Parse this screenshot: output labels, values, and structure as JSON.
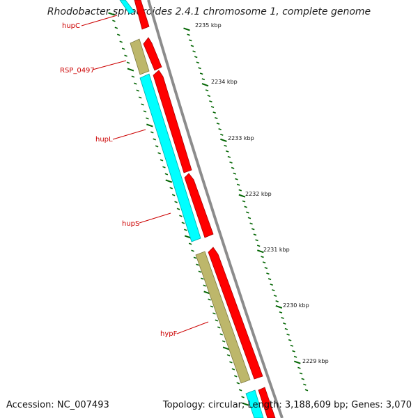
{
  "title": "Rhodobacter sphaeroides 2.4.1 chromosome 1, complete genome",
  "footer": {
    "accession": "Accession: NC_007493",
    "summary": "Topology: circular; Length: 3,188,609 bp; Genes: 3,070"
  },
  "gene_labels": [
    "hupC",
    "RSP_0497",
    "hupL",
    "hupS",
    "hypF"
  ],
  "kbp_labels": [
    "2235 kbp",
    "2234 kbp",
    "2233 kbp",
    "2232 kbp",
    "2231 kbp",
    "2230 kbp",
    "2229 kbp"
  ],
  "colors": {
    "forward_gene": "#ff0000",
    "reverse_gene_cyan": "#00ffff",
    "reverse_gene_khaki": "#bdb76b",
    "tick": "#006400",
    "label": "#cc0000",
    "backbone": "#888888"
  }
}
